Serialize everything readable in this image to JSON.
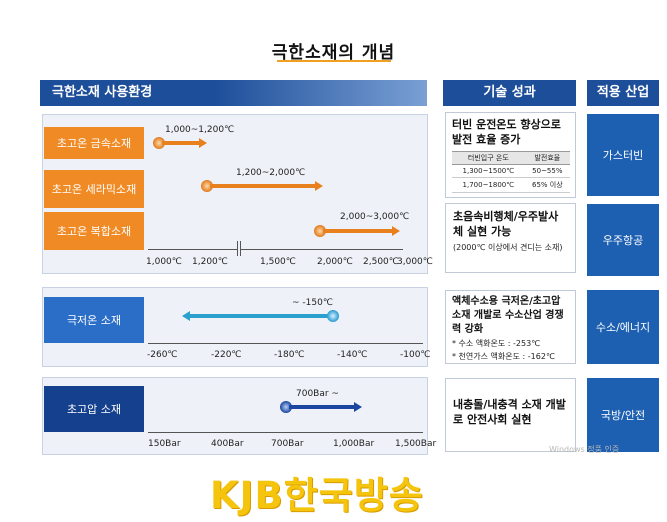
{
  "title": "극한소재의 개념",
  "headers": {
    "env": "극한소재 사용환경",
    "tech": "기술 성과",
    "industry": "적용 산업"
  },
  "high_temp": {
    "rows": [
      {
        "label": "초고온 금속소재",
        "range": "1,000~1,200℃"
      },
      {
        "label": "초고온 세라믹소재",
        "range": "1,200~2,000℃"
      },
      {
        "label": "초고온 복합소재",
        "range": "2,000~3,000℃"
      }
    ],
    "ticks": [
      "1,000℃",
      "1,200℃",
      "1,500℃",
      "2,000℃",
      "2,500℃",
      "3,000℃"
    ]
  },
  "cryo": {
    "label": "극저온 소재",
    "range": "~ -150℃",
    "ticks": [
      "-260℃",
      "-220℃",
      "-180℃",
      "-140℃",
      "-100℃"
    ]
  },
  "high_pressure": {
    "label": "초고압 소재",
    "range": "700Bar ~",
    "ticks": [
      "150Bar",
      "400Bar",
      "700Bar",
      "1,000Bar",
      "1,500Bar"
    ]
  },
  "tech": {
    "box1": {
      "title": "터빈 운전온도 향상으로 발전 효율 증가",
      "table_headers": [
        "터빈입구 온도",
        "발전효율"
      ],
      "table_rows": [
        [
          "1,300~1500℃",
          "50~55%"
        ],
        [
          "1,700~1800℃",
          "65% 이상"
        ]
      ]
    },
    "box2": {
      "title": "초음속비행체/우주발사체 실현 가능",
      "note": "(2000℃ 이상에서 견디는 소재)"
    },
    "box3": {
      "title": "액체수소용 극저온/초고압 소재 개발로 수소산업 경쟁력 강화",
      "notes": [
        "* 수소 액화온도 : -253℃",
        "* 천연가스 액화온도 : -162℃"
      ]
    },
    "box4": {
      "title": "내충돌/내충격 소재 개발로 안전사회 실현"
    }
  },
  "industries": [
    "가스터빈",
    "우주항공",
    "수소/에너지",
    "국방/안전"
  ],
  "watermark": "Windows 정품 인증",
  "logo": "KJB한국방송",
  "colors": {
    "orange": "#f08a24",
    "blue": "#2a6ec8",
    "navy": "#14408e",
    "header": "#1d4e9a",
    "logo": "#f5c40c"
  }
}
